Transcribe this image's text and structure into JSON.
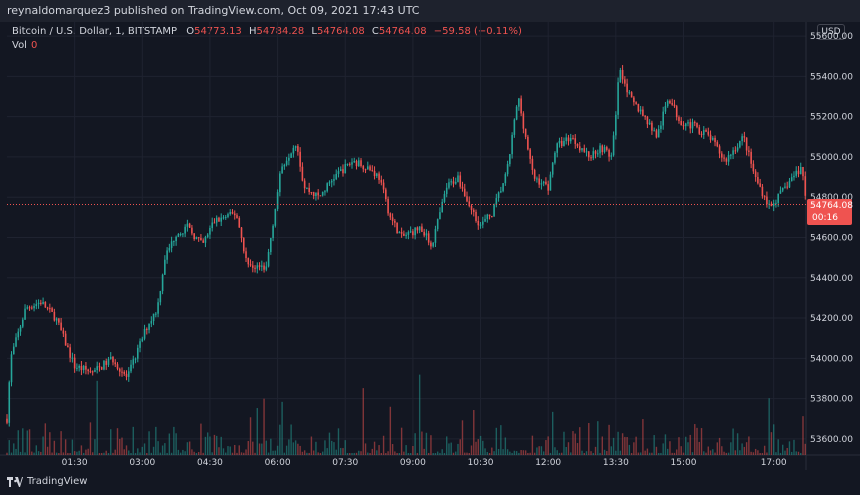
{
  "publish_text": "reynaldomarquez3 published on TradingView.com, Oct 09, 2021 17:43 UTC",
  "legend": {
    "symbol": "Bitcoin / U.S. Dollar, 1, BITSTAMP",
    "o_label": "O",
    "o_value": "54773.13",
    "h_label": "H",
    "h_value": "54784.28",
    "l_label": "L",
    "l_value": "54764.08",
    "c_label": "C",
    "c_value": "54764.08",
    "change": "−59.58 (−0.11%)"
  },
  "volume": {
    "label": "Vol",
    "value": "0"
  },
  "currency": "USD",
  "last_price": {
    "price": "54764.08",
    "countdown": "00:16"
  },
  "footer": {
    "brand": "TradingView"
  },
  "colors": {
    "up": "#26a69a",
    "down": "#ef5350",
    "background": "#131722",
    "grid": "#1f2330",
    "text": "#d1d4dc"
  },
  "chart_data": {
    "type": "candlestick",
    "y_ticks": [
      "55600.00",
      "55400.00",
      "55200.00",
      "55000.00",
      "54800.00",
      "54600.00",
      "54400.00",
      "54200.00",
      "54000.00",
      "53800.00",
      "53600.00"
    ],
    "y_tick_values": [
      55600,
      55400,
      55200,
      55000,
      54800,
      54600,
      54400,
      54200,
      54000,
      53800,
      53600
    ],
    "x_ticks": [
      "01:30",
      "03:00",
      "04:30",
      "06:00",
      "07:30",
      "09:00",
      "10:30",
      "12:00",
      "13:30",
      "15:00",
      "17:00"
    ],
    "x_range": [
      "00:00",
      "17:43"
    ],
    "y_range": [
      53520,
      55670
    ],
    "last_close": 54764.08,
    "anchors": [
      {
        "t": "00:00",
        "p": 53700
      },
      {
        "t": "00:05",
        "p": 54000
      },
      {
        "t": "00:25",
        "p": 54250
      },
      {
        "t": "00:45",
        "p": 54280
      },
      {
        "t": "01:05",
        "p": 54200
      },
      {
        "t": "01:30",
        "p": 53960
      },
      {
        "t": "01:55",
        "p": 53930
      },
      {
        "t": "02:20",
        "p": 54000
      },
      {
        "t": "02:40",
        "p": 53900
      },
      {
        "t": "03:05",
        "p": 54150
      },
      {
        "t": "03:20",
        "p": 54250
      },
      {
        "t": "03:30",
        "p": 54500
      },
      {
        "t": "03:45",
        "p": 54620
      },
      {
        "t": "04:00",
        "p": 54650
      },
      {
        "t": "04:20",
        "p": 54560
      },
      {
        "t": "04:35",
        "p": 54680
      },
      {
        "t": "05:05",
        "p": 54720
      },
      {
        "t": "05:20",
        "p": 54460
      },
      {
        "t": "05:45",
        "p": 54450
      },
      {
        "t": "05:55",
        "p": 54700
      },
      {
        "t": "06:05",
        "p": 54950
      },
      {
        "t": "06:25",
        "p": 55080
      },
      {
        "t": "06:35",
        "p": 54850
      },
      {
        "t": "06:55",
        "p": 54800
      },
      {
        "t": "07:15",
        "p": 54900
      },
      {
        "t": "07:40",
        "p": 54980
      },
      {
        "t": "08:00",
        "p": 54950
      },
      {
        "t": "08:15",
        "p": 54900
      },
      {
        "t": "08:30",
        "p": 54700
      },
      {
        "t": "08:45",
        "p": 54600
      },
      {
        "t": "09:10",
        "p": 54650
      },
      {
        "t": "09:25",
        "p": 54560
      },
      {
        "t": "09:45",
        "p": 54850
      },
      {
        "t": "10:00",
        "p": 54900
      },
      {
        "t": "10:15",
        "p": 54760
      },
      {
        "t": "10:30",
        "p": 54660
      },
      {
        "t": "10:45",
        "p": 54720
      },
      {
        "t": "11:05",
        "p": 54920
      },
      {
        "t": "11:20",
        "p": 55300
      },
      {
        "t": "11:40",
        "p": 54900
      },
      {
        "t": "12:00",
        "p": 54850
      },
      {
        "t": "12:10",
        "p": 55050
      },
      {
        "t": "12:30",
        "p": 55100
      },
      {
        "t": "12:55",
        "p": 55000
      },
      {
        "t": "13:10",
        "p": 55050
      },
      {
        "t": "13:25",
        "p": 55000
      },
      {
        "t": "13:35",
        "p": 55450
      },
      {
        "t": "13:50",
        "p": 55280
      },
      {
        "t": "14:05",
        "p": 55220
      },
      {
        "t": "14:25",
        "p": 55100
      },
      {
        "t": "14:40",
        "p": 55300
      },
      {
        "t": "14:55",
        "p": 55180
      },
      {
        "t": "15:15",
        "p": 55150
      },
      {
        "t": "15:35",
        "p": 55100
      },
      {
        "t": "15:55",
        "p": 54980
      },
      {
        "t": "16:20",
        "p": 55100
      },
      {
        "t": "16:35",
        "p": 54900
      },
      {
        "t": "16:55",
        "p": 54750
      },
      {
        "t": "17:10",
        "p": 54820
      },
      {
        "t": "17:25",
        "p": 54900
      },
      {
        "t": "17:38",
        "p": 54950
      },
      {
        "t": "17:43",
        "p": 54764
      }
    ]
  }
}
